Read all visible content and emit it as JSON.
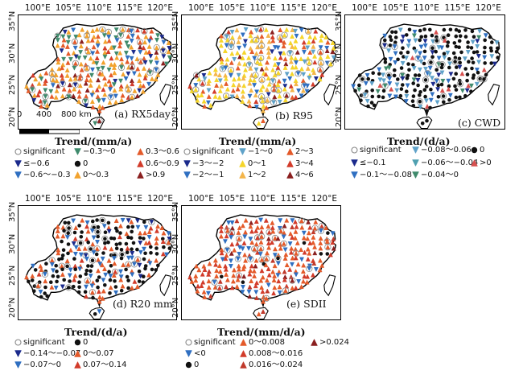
{
  "lon_ticks": [
    "100°E",
    "105°E",
    "110°E",
    "115°E",
    "120°E"
  ],
  "lat_ticks": [
    "35°N",
    "30°N",
    "25°N",
    "20°N"
  ],
  "scale": {
    "labels": [
      "0",
      "400",
      "800 km"
    ]
  },
  "colors": {
    "dark_blue": "#1b2a8c",
    "blue": "#2f6fc1",
    "light_blue": "#5fa2c9",
    "green": "#3f8a6c",
    "black": "#111111",
    "orange": "#f2a22d",
    "yellow": "#f5d52a",
    "light_orange": "#f4b54a",
    "red_orange": "#e45a2a",
    "red": "#d23b2a",
    "dark_red": "#8a1f1f",
    "pink_red": "#d8504f",
    "gray_ring": "#8a8a8a"
  },
  "panels": [
    {
      "id": "rx5day",
      "label": "(a) RX5day",
      "trend_title": "Trend/(mm/a)",
      "legend": [
        {
          "label": "significant",
          "symbol": "circle-open",
          "color": "#8a8a8a"
        },
        {
          "label": "≤−0.6",
          "symbol": "tri-down",
          "color": "#1b2a8c"
        },
        {
          "label": "−0.6～−0.3",
          "symbol": "tri-down",
          "color": "#2f6fc1"
        },
        {
          "label": "−0.3～0",
          "symbol": "tri-down",
          "color": "#3f8a6c"
        },
        {
          "label": "0",
          "symbol": "dot",
          "color": "#111111"
        },
        {
          "label": "0～0.3",
          "symbol": "tri-up",
          "color": "#f2a22d"
        },
        {
          "label": "0.3～0.6",
          "symbol": "tri-up",
          "color": "#e45a2a"
        },
        {
          "label": "0.6～0.9",
          "symbol": "tri-up",
          "color": "#d23b2a"
        },
        {
          "label": ">0.9",
          "symbol": "tri-up",
          "color": "#8a1f1f"
        }
      ]
    },
    {
      "id": "r95",
      "label": "(b) R95",
      "trend_title": "Trend/(mm/a)",
      "legend": [
        {
          "label": "significant",
          "symbol": "circle-open",
          "color": "#8a8a8a"
        },
        {
          "label": "−3～−2",
          "symbol": "tri-down",
          "color": "#1b2a8c"
        },
        {
          "label": "−2～−1",
          "symbol": "tri-down",
          "color": "#2f6fc1"
        },
        {
          "label": "−1～0",
          "symbol": "tri-down",
          "color": "#5fa2c9"
        },
        {
          "label": "0～1",
          "symbol": "tri-up",
          "color": "#f5d52a"
        },
        {
          "label": "1～2",
          "symbol": "tri-up",
          "color": "#f4b54a"
        },
        {
          "label": "2～3",
          "symbol": "tri-up",
          "color": "#e45a2a"
        },
        {
          "label": "3～4",
          "symbol": "tri-up",
          "color": "#d23b2a"
        },
        {
          "label": "4～6",
          "symbol": "tri-up",
          "color": "#8a1f1f"
        }
      ]
    },
    {
      "id": "cwd",
      "label": "(c) CWD",
      "trend_title": "Trend/(d/a)",
      "legend": [
        {
          "label": "significant",
          "symbol": "circle-open",
          "color": "#8a8a8a"
        },
        {
          "label": "≤−0.1",
          "symbol": "tri-down",
          "color": "#1b2a8c"
        },
        {
          "label": "−0.1～−0.08",
          "symbol": "tri-down",
          "color": "#2f6fc1"
        },
        {
          "label": "−0.08～0.06",
          "symbol": "tri-down",
          "color": "#5fa2c9"
        },
        {
          "label": "−0.06～−0.04",
          "symbol": "tri-down",
          "color": "#4fa0b0"
        },
        {
          "label": "−0.04～0",
          "symbol": "tri-down",
          "color": "#3f8a6c"
        },
        {
          "label": "0",
          "symbol": "dot",
          "color": "#111111"
        },
        {
          "label": ">0",
          "symbol": "tri-up",
          "color": "#d8504f"
        }
      ]
    },
    {
      "id": "r20mm",
      "label": "(d) R20 mm",
      "trend_title": "Trend/(d/a)",
      "legend": [
        {
          "label": "significant",
          "symbol": "circle-open",
          "color": "#8a8a8a"
        },
        {
          "label": "−0.14～−0.07",
          "symbol": "tri-down",
          "color": "#1b2a8c"
        },
        {
          "label": "−0.07～0",
          "symbol": "tri-down",
          "color": "#2f6fc1"
        },
        {
          "label": "0",
          "symbol": "dot",
          "color": "#111111"
        },
        {
          "label": "0～0.07",
          "symbol": "tri-up",
          "color": "#e45a2a"
        },
        {
          "label": "0.07～0.14",
          "symbol": "tri-up",
          "color": "#d23b2a"
        }
      ]
    },
    {
      "id": "sdii",
      "label": "(e) SDII",
      "trend_title": "Trend/(mm/d/a)",
      "legend": [
        {
          "label": "significant",
          "symbol": "circle-open",
          "color": "#8a8a8a"
        },
        {
          "label": "<0",
          "symbol": "tri-down",
          "color": "#2f6fc1"
        },
        {
          "label": "0",
          "symbol": "dot",
          "color": "#111111"
        },
        {
          "label": "0～0.008",
          "symbol": "tri-up",
          "color": "#e45a2a"
        },
        {
          "label": "0.008～0.016",
          "symbol": "tri-up",
          "color": "#d23b2a"
        },
        {
          "label": "0.016～0.024",
          "symbol": "tri-up",
          "color": "#c0392b"
        },
        {
          "label": ">0.024",
          "symbol": "tri-up",
          "color": "#8a1f1f"
        }
      ]
    }
  ]
}
